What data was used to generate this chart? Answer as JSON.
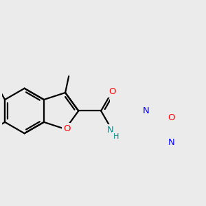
{
  "bg_color": "#ebebeb",
  "bond_color": "#000000",
  "atom_colors": {
    "O": "#ff0000",
    "N": "#0000ff",
    "N_amide": "#008b8b",
    "C": "#000000"
  },
  "bond_width": 1.6,
  "figsize": [
    3.0,
    3.0
  ],
  "dpi": 100,
  "xlim": [
    -1.0,
    3.8
  ],
  "ylim": [
    -1.5,
    2.2
  ]
}
